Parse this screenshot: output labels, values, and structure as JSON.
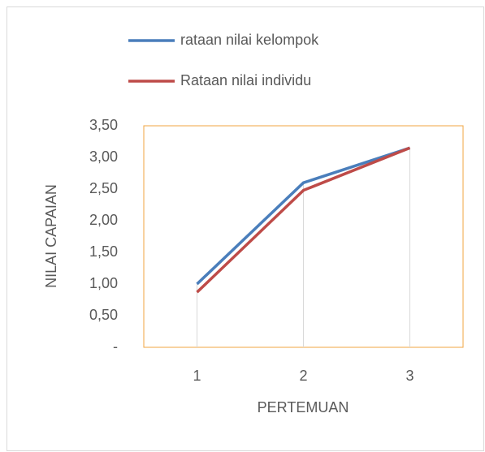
{
  "chart_data": {
    "type": "line",
    "categories": [
      "1",
      "2",
      "3"
    ],
    "series": [
      {
        "name": "rataan nilai kelompok",
        "color": "#4a7ebb",
        "values": [
          1.0,
          2.6,
          3.15
        ]
      },
      {
        "name": "Rataan nilai individu",
        "color": "#be4b48",
        "values": [
          0.87,
          2.48,
          3.15
        ]
      }
    ],
    "ylim": [
      0,
      3.5
    ],
    "yticks": [
      {
        "value": 0,
        "label": "-"
      },
      {
        "value": 0.5,
        "label": "0,50"
      },
      {
        "value": 1,
        "label": "1,00"
      },
      {
        "value": 1.5,
        "label": "1,50"
      },
      {
        "value": 2,
        "label": "2,00"
      },
      {
        "value": 2.5,
        "label": "2,50"
      },
      {
        "value": 3,
        "label": "3,00"
      },
      {
        "value": 3.5,
        "label": "3,50"
      }
    ],
    "xlabel": "PERTEMUAN",
    "ylabel": "NILAI CAPAIAN",
    "legend": "top"
  }
}
